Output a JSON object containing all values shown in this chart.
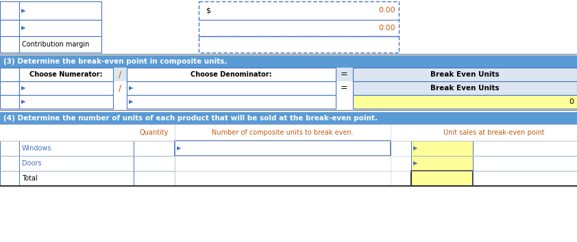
{
  "bg_color": "#ffffff",
  "header_blue": "#5b9bd5",
  "light_blue": "#dce6f1",
  "yellow": "#ffff99",
  "text_orange": "#c55a11",
  "text_blue_label": "#4472c4",
  "border_color": "#4472c4",
  "border_dark": "#333333",
  "gray_line": "#aaaaaa",
  "section3_header": "(3) Determine the break-even point in composite units.",
  "section4_header": "(4) Determine the number of units of each product that will be sold at the break-even point.",
  "s1_row1_dollar": "$",
  "s1_row1_val": "0.00",
  "s1_row2_val": "0.00",
  "s1_row3_label": "Contribution margin",
  "s3_r1": [
    "Choose Numerator:",
    "/",
    "Choose Denominator:",
    "=",
    "Break Even Units"
  ],
  "s3_r2": [
    "",
    "/",
    "",
    "=",
    "Break Even Units"
  ],
  "s3_r3_val": "0",
  "s4_col_qty": "Quantity",
  "s4_col_composite": "Number of composite units to break even.",
  "s4_col_unit": "Unit sales at break-even point",
  "s4_rows": [
    "Windows",
    "Doors",
    "Total"
  ]
}
